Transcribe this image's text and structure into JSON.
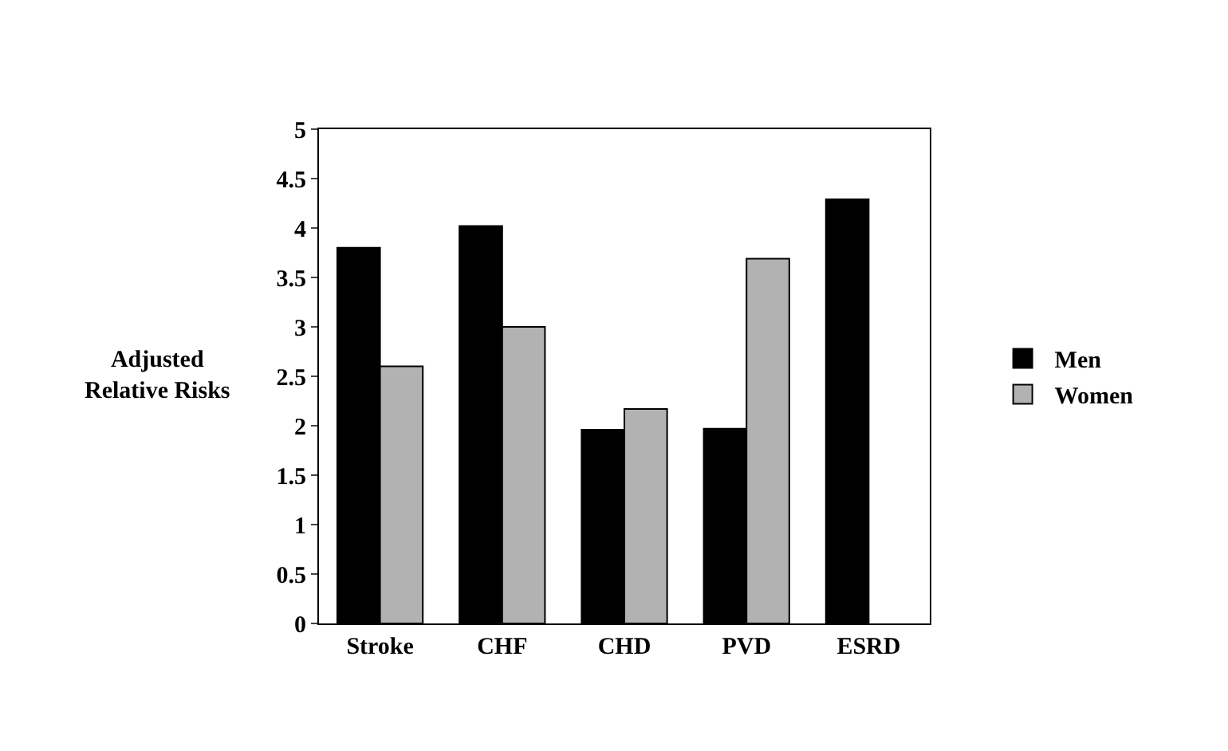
{
  "chart_data": {
    "type": "bar",
    "ylabel": "Adjusted\nRelative Risks",
    "categories": [
      "Stroke",
      "CHF",
      "CHD",
      "PVD",
      "ESRD"
    ],
    "series": [
      {
        "name": "Men",
        "color": "#000000",
        "values": [
          3.8,
          4.02,
          1.96,
          1.97,
          4.29
        ]
      },
      {
        "name": "Women",
        "color": "#b2b2b2",
        "values": [
          2.6,
          3.0,
          2.17,
          3.69,
          null
        ]
      }
    ],
    "ylim": [
      0,
      5
    ],
    "yticks": [
      0,
      0.5,
      1,
      1.5,
      2,
      2.5,
      3,
      3.5,
      4,
      4.5,
      5
    ],
    "legend": "right"
  }
}
